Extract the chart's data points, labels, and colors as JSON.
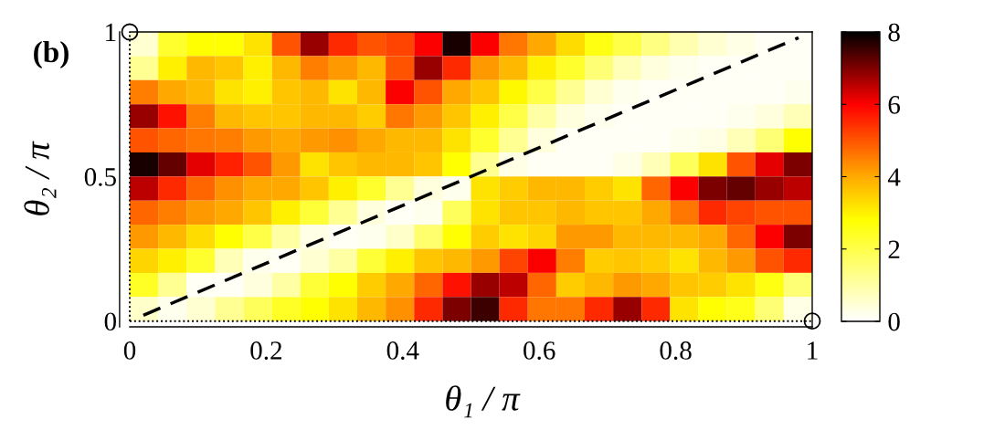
{
  "chart_data": {
    "type": "heatmap",
    "title": "(b)",
    "xlabel": "θ₁ / π",
    "ylabel": "θ₂ / π",
    "xlim": [
      0,
      1
    ],
    "xticks": [
      0,
      0.2,
      0.4,
      0.6,
      0.8,
      1
    ],
    "ylim": [
      -0.02,
      1
    ],
    "yticks": [
      0,
      0.5,
      1
    ],
    "clim": [
      0,
      8
    ],
    "cticks": [
      0,
      2,
      4,
      6,
      8
    ],
    "cells": [
      [
        0.5,
        2.3,
        2.8,
        2.8,
        3.2,
        5.0,
        6.8,
        5.5,
        5.0,
        5.2,
        6.0,
        7.8,
        6.0,
        4.6,
        4.0,
        3.3,
        2.6,
        2.0,
        1.4,
        0.9,
        0.5,
        0.3,
        0.1,
        0.1
      ],
      [
        1.2,
        3.0,
        3.8,
        3.6,
        3.0,
        3.8,
        4.5,
        4.2,
        3.8,
        5.0,
        6.8,
        5.5,
        4.2,
        3.8,
        3.0,
        2.3,
        1.5,
        0.8,
        0.4,
        0.2,
        0.1,
        0.1,
        0.1,
        0.1
      ],
      [
        4.5,
        4.0,
        3.8,
        3.2,
        3.0,
        3.6,
        3.8,
        3.2,
        3.8,
        6.0,
        5.0,
        4.0,
        3.6,
        2.9,
        2.0,
        1.2,
        0.5,
        0.2,
        0.1,
        0.1,
        0.1,
        0.1,
        0.1,
        0.2
      ],
      [
        6.8,
        5.8,
        4.5,
        3.8,
        3.6,
        3.6,
        3.8,
        3.8,
        3.5,
        4.6,
        4.2,
        3.6,
        3.0,
        2.0,
        1.0,
        0.4,
        0.2,
        0.1,
        0.1,
        0.1,
        0.1,
        0.2,
        0.4,
        0.8
      ],
      [
        5.0,
        4.8,
        4.6,
        4.5,
        4.2,
        4.0,
        4.2,
        4.3,
        4.0,
        3.8,
        3.8,
        3.2,
        2.3,
        1.2,
        0.4,
        0.1,
        0.1,
        0.1,
        0.1,
        0.2,
        0.3,
        0.8,
        1.5,
        2.8
      ],
      [
        7.8,
        7.2,
        6.2,
        5.6,
        5.0,
        4.2,
        3.2,
        3.6,
        3.8,
        3.8,
        3.6,
        2.8,
        1.2,
        0.3,
        0.1,
        0.1,
        0.1,
        0.3,
        0.8,
        1.8,
        3.2,
        5.0,
        6.2,
        7.0
      ],
      [
        6.5,
        5.5,
        4.8,
        4.3,
        4.0,
        4.0,
        3.6,
        3.0,
        2.3,
        1.2,
        0.4,
        0.2,
        3.2,
        3.5,
        3.8,
        3.8,
        3.5,
        3.2,
        4.8,
        6.0,
        7.0,
        7.2,
        6.8,
        6.5
      ],
      [
        4.8,
        4.5,
        4.2,
        4.0,
        3.6,
        3.0,
        2.2,
        1.2,
        0.4,
        0.1,
        0.2,
        1.8,
        3.2,
        3.6,
        3.6,
        3.8,
        3.6,
        3.6,
        4.0,
        4.6,
        5.5,
        5.2,
        5.0,
        5.0
      ],
      [
        4.2,
        3.8,
        3.3,
        2.8,
        2.0,
        1.0,
        0.3,
        0.1,
        0.2,
        0.6,
        1.6,
        2.8,
        3.5,
        3.2,
        3.4,
        4.2,
        4.2,
        3.8,
        3.8,
        3.8,
        4.0,
        4.8,
        6.0,
        7.0
      ],
      [
        3.4,
        3.0,
        2.3,
        0.8,
        0.2,
        0.1,
        0.5,
        1.0,
        2.2,
        3.0,
        3.6,
        3.8,
        4.2,
        5.2,
        6.0,
        4.5,
        3.5,
        3.6,
        3.5,
        3.2,
        3.8,
        4.2,
        5.0,
        5.5
      ],
      [
        2.4,
        1.2,
        0.1,
        0.1,
        0.4,
        1.0,
        2.2,
        2.8,
        3.5,
        4.0,
        4.8,
        5.8,
        6.8,
        6.5,
        4.8,
        3.5,
        3.8,
        4.2,
        4.0,
        3.6,
        3.5,
        3.2,
        2.6,
        1.5
      ],
      [
        0.6,
        0.2,
        0.5,
        1.2,
        1.8,
        2.4,
        2.8,
        3.2,
        3.8,
        4.3,
        5.5,
        7.0,
        7.5,
        5.5,
        4.6,
        4.6,
        5.5,
        6.8,
        5.5,
        3.2,
        2.8,
        2.5,
        1.5,
        0.3
      ]
    ],
    "series": [
      {
        "type": "line",
        "x": [
          0.02,
          0.98
        ],
        "values": [
          0.02,
          0.98
        ],
        "color": "#000000",
        "line_style": "dashed"
      },
      {
        "type": "line",
        "x": [
          0,
          1
        ],
        "values": [
          0,
          0
        ],
        "color": "#000000",
        "line_style": "dotted"
      },
      {
        "type": "line",
        "x": [
          0,
          0
        ],
        "values": [
          0,
          1
        ],
        "color": "#000000",
        "line_style": "dotted"
      },
      {
        "type": "scatter",
        "x": [
          0,
          1
        ],
        "values": [
          1,
          0
        ],
        "color": "#000000",
        "marker": "circle"
      }
    ]
  }
}
